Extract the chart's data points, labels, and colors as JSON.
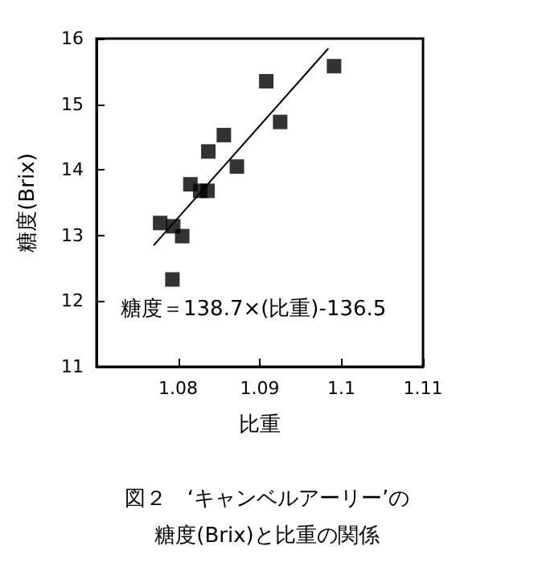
{
  "chart_data": {
    "type": "scatter",
    "title": "図２　‘キャンベルアーリー’の",
    "subtitle": "糖度(Brix)と比重の関係",
    "xlabel": "比重",
    "ylabel": "糖度(Brix)",
    "annotations": [
      "糖度＝138.7×(比重)-136.5"
    ],
    "xlim": [
      1.07,
      1.11
    ],
    "xticks": [
      1.08,
      1.09,
      1.1,
      1.11
    ],
    "ylim": [
      11,
      16
    ],
    "yticks": [
      11,
      12,
      13,
      14,
      15,
      16
    ],
    "marker": "square",
    "grid": false,
    "series": [
      {
        "color": "#000000",
        "x": [
          1.0778,
          1.0794,
          1.0805,
          1.0793,
          1.0815,
          1.0827,
          1.0836,
          1.0837,
          1.0856,
          1.0872,
          1.0908,
          1.0925,
          1.0991
        ],
        "values": [
          13.19,
          13.14,
          12.99,
          12.33,
          13.78,
          13.68,
          13.68,
          14.28,
          14.53,
          14.05,
          15.35,
          14.73,
          15.58
        ]
      },
      {
        "type": "line",
        "color": "#000000",
        "line_style": "solid",
        "marker": "none",
        "x": [
          1.077,
          1.0984
        ],
        "values": [
          12.85,
          15.85
        ]
      }
    ]
  }
}
